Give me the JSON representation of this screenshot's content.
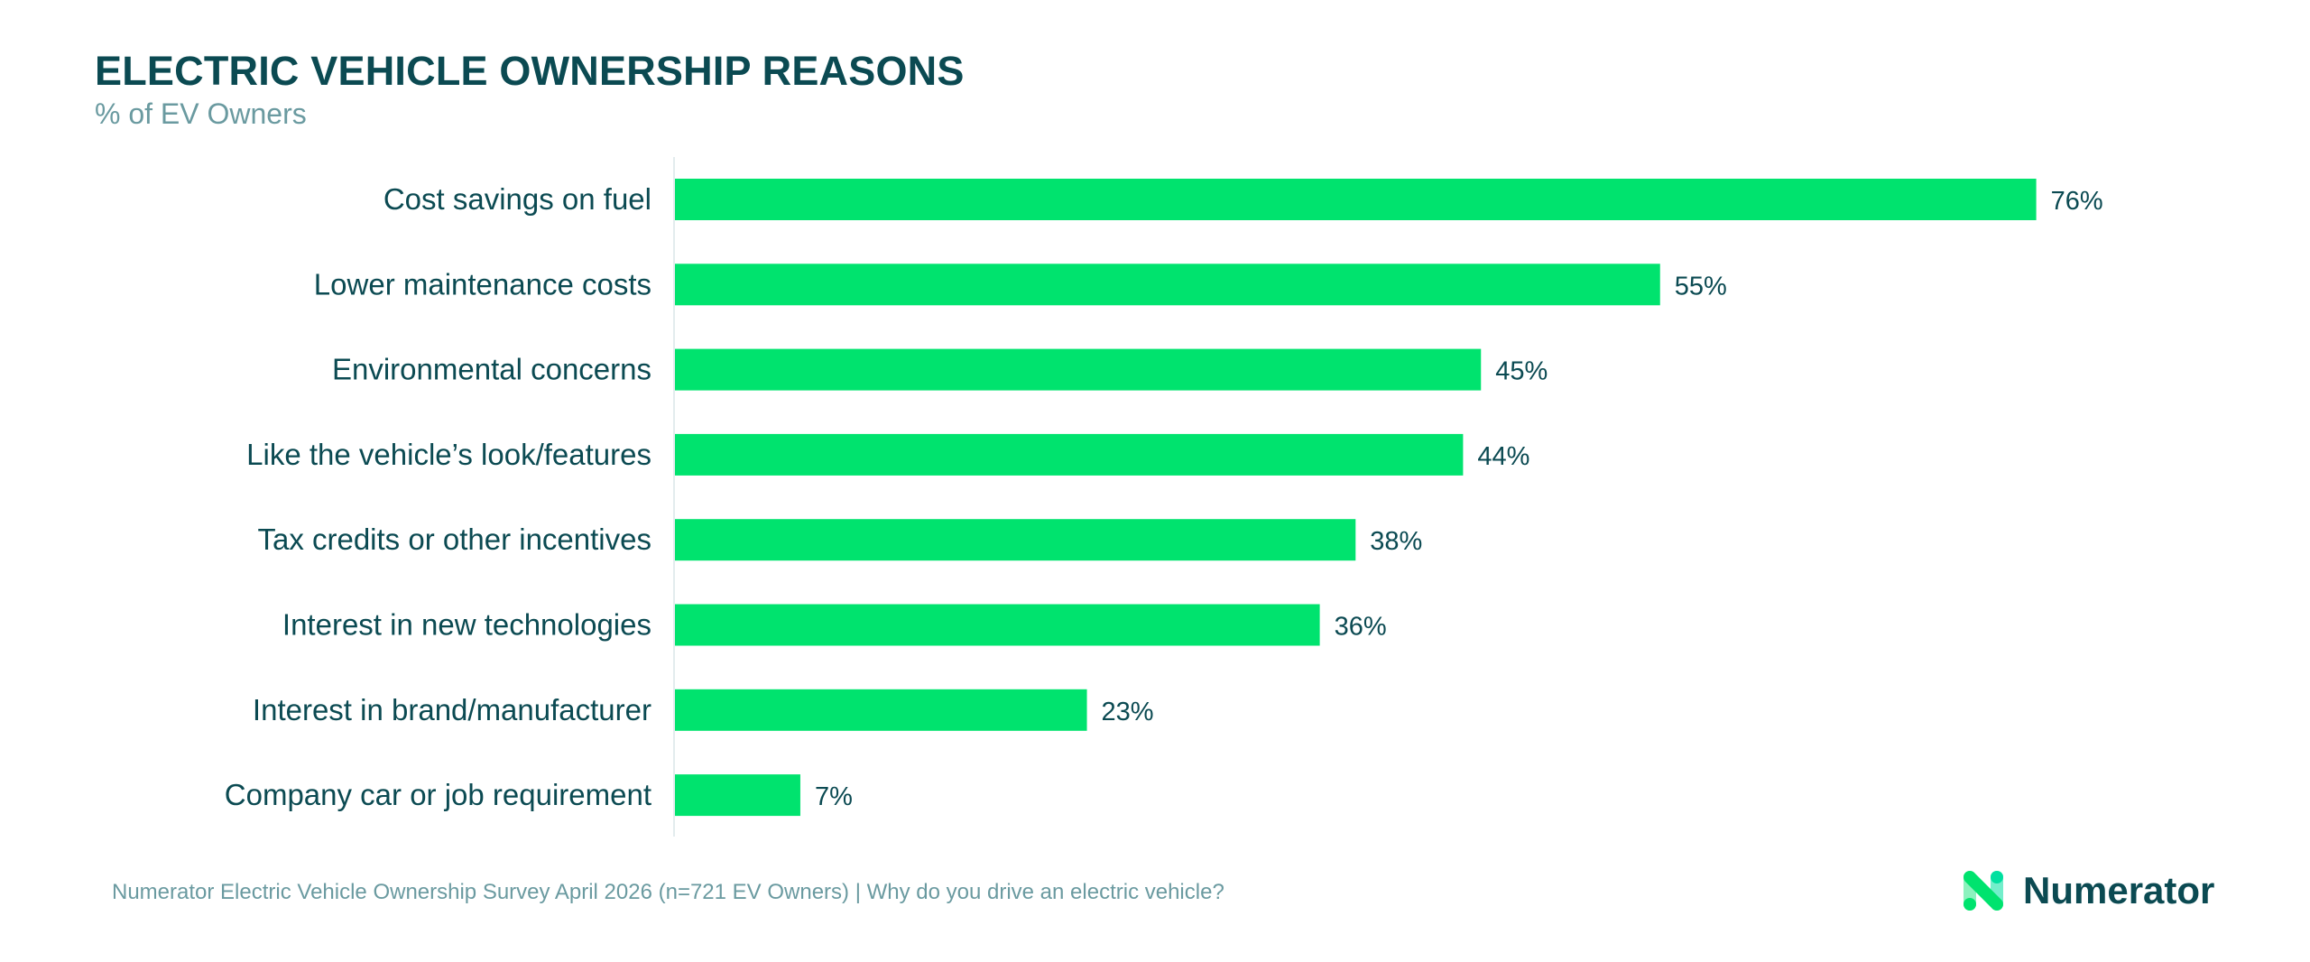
{
  "header": {
    "title": "ELECTRIC VEHICLE OWNERSHIP REASONS",
    "subtitle": "% of EV Owners"
  },
  "chart_data": {
    "type": "bar",
    "orientation": "horizontal",
    "title": "ELECTRIC VEHICLE OWNERSHIP REASONS",
    "subtitle": "% of EV Owners",
    "xlabel": "",
    "ylabel": "",
    "xlim": [
      0,
      100
    ],
    "grid": false,
    "legend": "none",
    "categories": [
      "Cost savings on fuel",
      "Lower maintenance costs",
      "Environmental concerns",
      "Like the vehicle’s look/features",
      "Tax credits or other incentives",
      "Interest in new technologies",
      "Interest in brand/manufacturer",
      "Company car or job requirement"
    ],
    "values": [
      76,
      55,
      45,
      44,
      38,
      36,
      23,
      7
    ],
    "value_labels": [
      "76%",
      "55%",
      "45%",
      "44%",
      "38%",
      "36%",
      "23%",
      "7%"
    ],
    "unit": "%"
  },
  "colors": {
    "bar": "#00e36e",
    "text_primary": "#0b4a52",
    "text_muted": "#6a9aa0",
    "axis": "#e3ecee"
  },
  "footer": {
    "source": "Numerator Electric Vehicle Ownership Survey April 2026 (n=721 EV Owners) | Why do you drive an electric vehicle?"
  },
  "brand": {
    "name": "Numerator",
    "logo_icon": "numerator-n-logo-icon"
  }
}
